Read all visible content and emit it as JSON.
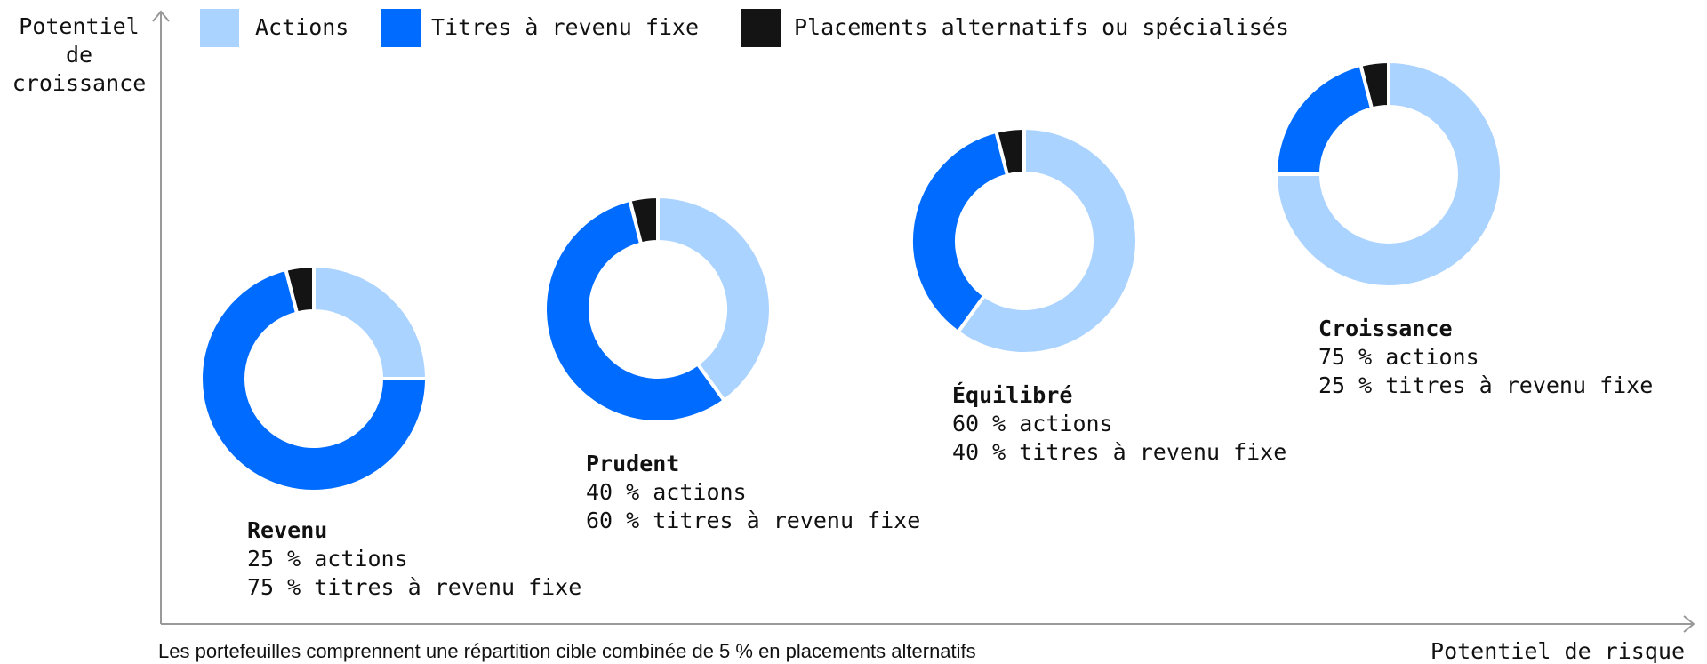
{
  "chart_data": {
    "type": "donut",
    "y_axis_label": "Potentiel de croissance",
    "x_axis_label": "Potentiel de risque",
    "footnote": "Les portefeuilles comprennent une répartition cible combinée de 5 % en placements alternatifs",
    "series": [
      {
        "name": "Actions",
        "color": "#abd3ff"
      },
      {
        "name": "Titres à revenu fixe",
        "color": "#006cff"
      },
      {
        "name": "Placements alternatifs ou spécialisés",
        "color": "#141414"
      }
    ],
    "portfolios": [
      {
        "name": "Revenu",
        "lines": [
          "25 % actions",
          "75 % titres à revenu fixe"
        ],
        "values": [
          25,
          71,
          4
        ]
      },
      {
        "name": "Prudent",
        "lines": [
          "40 % actions",
          "60 % titres à revenu fixe"
        ],
        "values": [
          40,
          56,
          4
        ]
      },
      {
        "name": "Équilibré",
        "lines": [
          "60 % actions",
          "40 % titres à revenu fixe"
        ],
        "values": [
          60,
          36,
          4
        ]
      },
      {
        "name": "Croissance",
        "lines": [
          "75 % actions",
          "25 % titres à revenu fixe"
        ],
        "values": [
          75,
          21,
          4
        ]
      }
    ]
  }
}
